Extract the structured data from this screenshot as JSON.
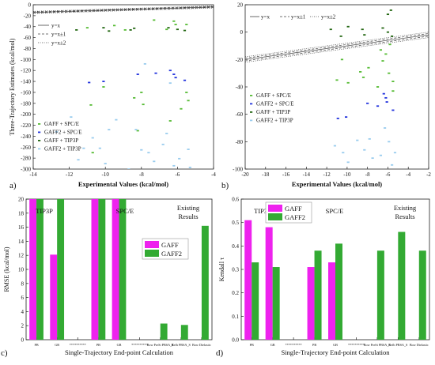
{
  "chart_data": [
    {
      "type": "scatter",
      "panel_label": "a)",
      "xlabel": "Experimental Values (kcal/mol)",
      "ylabel": "Three-Trajectory Estimates (kcal/mol)",
      "xlim": [
        -14,
        -4
      ],
      "ylim": [
        -300,
        0
      ],
      "xticks": [
        -14,
        -12,
        -10,
        -8,
        -6,
        -4
      ],
      "yticks": [
        0,
        -20,
        -40,
        -60,
        -80,
        -100,
        -120,
        -140,
        -160,
        -180,
        -200,
        -220,
        -240,
        -260,
        -280,
        -300
      ],
      "reference_lines": [
        {
          "label": "y=x",
          "offset": 0,
          "style": "solid"
        },
        {
          "label": "y=x±1",
          "offset": 1,
          "style": "dash"
        },
        {
          "label": "y=x±2",
          "offset": 2,
          "style": "dot"
        }
      ],
      "series": [
        {
          "name": "GAFF + SPC/E",
          "color": "#55bb33",
          "points": [
            [
              -11.0,
              -42
            ],
            [
              -10.8,
              -183
            ],
            [
              -10.1,
              -150
            ],
            [
              -9.5,
              -38
            ],
            [
              -8.9,
              -46
            ],
            [
              -8.4,
              -170
            ],
            [
              -8.0,
              -160
            ],
            [
              -7.9,
              -182
            ],
            [
              -7.3,
              -28
            ],
            [
              -6.6,
              -45
            ],
            [
              -6.2,
              -30
            ],
            [
              -6.1,
              -36
            ],
            [
              -5.5,
              -36
            ],
            [
              -5.4,
              -175
            ],
            [
              -5.5,
              -160
            ],
            [
              -10.7,
              -270
            ],
            [
              -8.2,
              -230
            ],
            [
              -6.4,
              -212
            ],
            [
              -5.8,
              -190
            ]
          ]
        },
        {
          "name": "GAFF2 + SPC/E",
          "color": "#2233dd",
          "points": [
            [
              -10.9,
              -142
            ],
            [
              -10.1,
              -140
            ],
            [
              -8.2,
              -127
            ],
            [
              -7.2,
              -125
            ],
            [
              -6.4,
              -120
            ],
            [
              -6.2,
              -127
            ],
            [
              -6.1,
              -133
            ],
            [
              -5.6,
              -138
            ]
          ]
        },
        {
          "name": "GAFF + TIP3P",
          "color": "#226611",
          "points": [
            [
              -11.6,
              -46
            ],
            [
              -10.1,
              -42
            ],
            [
              -9.8,
              -48
            ],
            [
              -8.6,
              -46
            ],
            [
              -8.4,
              -43
            ],
            [
              -6.5,
              -42
            ],
            [
              -6.0,
              -45
            ],
            [
              -5.6,
              -47
            ]
          ]
        },
        {
          "name": "GAFF2 + TIP3P",
          "color": "#99ccee",
          "points": [
            [
              -12.7,
              -232
            ],
            [
              -11.9,
              -205
            ],
            [
              -11.5,
              -283
            ],
            [
              -11.2,
              -262
            ],
            [
              -10.7,
              -243
            ],
            [
              -10.3,
              -262
            ],
            [
              -10.0,
              -290
            ],
            [
              -9.8,
              -228
            ],
            [
              -9.4,
              -210
            ],
            [
              -8.7,
              -300
            ],
            [
              -8.3,
              -228
            ],
            [
              -8.0,
              -265
            ],
            [
              -7.6,
              -270
            ],
            [
              -7.3,
              -286
            ],
            [
              -6.8,
              -255
            ],
            [
              -6.6,
              -235
            ],
            [
              -6.2,
              -294
            ],
            [
              -5.9,
              -281
            ],
            [
              -5.4,
              -264
            ],
            [
              -5.3,
              -297
            ],
            [
              -7.8,
              -108
            ],
            [
              -6.4,
              -143
            ]
          ]
        }
      ]
    },
    {
      "type": "scatter",
      "panel_label": "b)",
      "xlabel": "Experimental Values (kcal/mol)",
      "ylabel": "",
      "xlim": [
        -20,
        -2
      ],
      "ylim": [
        -100,
        20
      ],
      "xticks": [
        -20,
        -18,
        -16,
        -14,
        -12,
        -10,
        -8,
        -6,
        -4,
        -2
      ],
      "yticks": [
        20,
        0,
        -20,
        -40,
        -60,
        -80,
        -100
      ],
      "reference_lines": [
        {
          "label": "y=x",
          "offset": 0,
          "style": "solid"
        },
        {
          "label": "y=x±1",
          "offset": 1,
          "style": "dash"
        },
        {
          "label": "y=x±2",
          "offset": 2,
          "style": "dot"
        }
      ],
      "series": [
        {
          "name": "GAFF + SPC/E",
          "color": "#55bb33",
          "points": [
            [
              -11.0,
              -35
            ],
            [
              -10.5,
              -20
            ],
            [
              -9.9,
              -37
            ],
            [
              -8.7,
              -29
            ],
            [
              -8.4,
              -33
            ],
            [
              -7.9,
              -26
            ],
            [
              -7.0,
              -40
            ],
            [
              -6.5,
              -21
            ],
            [
              -6.2,
              -16
            ],
            [
              -5.9,
              -30
            ],
            [
              -5.5,
              -36
            ],
            [
              -5.5,
              -43
            ],
            [
              -6.7,
              -13
            ],
            [
              -5.8,
              -9
            ]
          ]
        },
        {
          "name": "GAFF2 + SPC/E",
          "color": "#2233dd",
          "points": [
            [
              -10.9,
              -63
            ],
            [
              -10.1,
              -62
            ],
            [
              -8.0,
              -52
            ],
            [
              -7.0,
              -54
            ],
            [
              -6.4,
              -45
            ],
            [
              -6.2,
              -48
            ],
            [
              -6.1,
              -51
            ],
            [
              -5.5,
              -57
            ]
          ]
        },
        {
          "name": "GAFF + TIP3P",
          "color": "#226611",
          "points": [
            [
              -11.6,
              2
            ],
            [
              -10.6,
              -3
            ],
            [
              -9.9,
              4
            ],
            [
              -8.5,
              2
            ],
            [
              -8.3,
              -2
            ],
            [
              -6.5,
              3
            ],
            [
              -6.0,
              0
            ],
            [
              -5.6,
              -3
            ],
            [
              -6.0,
              13
            ],
            [
              -5.7,
              16
            ]
          ]
        },
        {
          "name": "GAFF2 + TIP3P",
          "color": "#99ccee",
          "points": [
            [
              -11.2,
              -83
            ],
            [
              -10.4,
              -88
            ],
            [
              -9.9,
              -95
            ],
            [
              -9.0,
              -79
            ],
            [
              -8.3,
              -86
            ],
            [
              -7.8,
              -78
            ],
            [
              -7.5,
              -92
            ],
            [
              -6.7,
              -90
            ],
            [
              -6.3,
              -70
            ],
            [
              -5.9,
              -80
            ],
            [
              -5.6,
              -97
            ],
            [
              -5.3,
              -88
            ]
          ]
        }
      ]
    },
    {
      "type": "bar",
      "panel_label": "c)",
      "xlabel": "Single-Trajectory End-point Calculation",
      "ylabel": "RMSE (kcal/mol)",
      "ylim": [
        0,
        20
      ],
      "yticks": [
        0,
        2,
        4,
        6,
        8,
        10,
        12,
        14,
        16,
        18,
        20
      ],
      "categories": [
        "PB",
        "GB",
        "**********",
        "PB",
        "GB",
        "**********",
        "Bow PreSi PBSA_E",
        "Refh PBSA_S",
        "Bow Dielastic"
      ],
      "group_labels": [
        "TIP3P",
        "SPC/E",
        "Existing Results"
      ],
      "series": [
        {
          "name": "GAFF",
          "color": "#ee22ee",
          "values": [
            20,
            12.1,
            null,
            20,
            20,
            null,
            null,
            null,
            null
          ]
        },
        {
          "name": "GAFF2",
          "color": "#33aa33",
          "values": [
            20,
            20,
            null,
            20,
            20,
            null,
            2.3,
            2.1,
            16.2
          ]
        }
      ]
    },
    {
      "type": "bar",
      "panel_label": "d)",
      "xlabel": "Single-Trajectory End-point Calculation",
      "ylabel": "Kendall τ",
      "ylim": [
        0,
        0.6
      ],
      "yticks": [
        0.0,
        0.1,
        0.2,
        0.3,
        0.4,
        0.5,
        0.6
      ],
      "categories": [
        "PB",
        "GB",
        "**********",
        "PB",
        "GB",
        "**********",
        "Bow PreSi PBSA_E",
        "Refh PBSA_S",
        "Bow Dielastic"
      ],
      "group_labels": [
        "TIP3P",
        "SPC/E",
        "Existing Results"
      ],
      "series": [
        {
          "name": "GAFF",
          "color": "#ee22ee",
          "values": [
            0.51,
            0.48,
            null,
            0.31,
            0.33,
            null,
            null,
            null,
            null
          ]
        },
        {
          "name": "GAFF2",
          "color": "#33aa33",
          "values": [
            0.33,
            0.31,
            null,
            0.38,
            0.41,
            null,
            0.38,
            0.46,
            0.38
          ]
        }
      ]
    }
  ]
}
